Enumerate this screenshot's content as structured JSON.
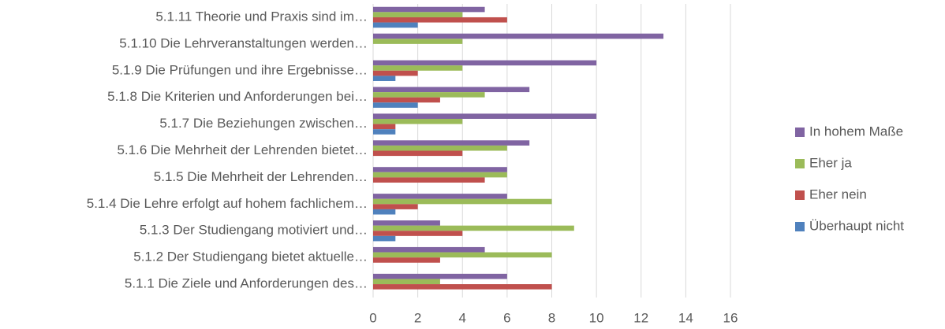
{
  "chart_data": {
    "type": "bar",
    "orientation": "horizontal",
    "categories": [
      "5.1.1 Die Ziele und Anforderungen des…",
      "5.1.2 Der Studiengang bietet aktuelle…",
      "5.1.3  Der Studiengang motiviert und…",
      "5.1.4 Die Lehre erfolgt auf hohem fachlichem…",
      "5.1.5 Die Mehrheit der Lehrenden…",
      "5.1.6 Die Mehrheit der Lehrenden bietet…",
      "5.1.7 Die Beziehungen zwischen…",
      "5.1.8 Die Kriterien und Anforderungen bei…",
      "5.1.9 Die Prüfungen und ihre Ergebnisse…",
      "5.1.10 Die Lehrveranstaltungen werden…",
      "5.1.11 Theorie und Praxis sind im…"
    ],
    "series": [
      {
        "name": "In hohem Maße",
        "color": "#8064a2",
        "values": [
          6,
          5,
          3,
          6,
          6,
          7,
          10,
          7,
          10,
          13,
          5
        ]
      },
      {
        "name": "Eher ja",
        "color": "#9bbb59",
        "values": [
          3,
          8,
          9,
          8,
          6,
          6,
          4,
          5,
          4,
          4,
          4
        ]
      },
      {
        "name": "Eher nein",
        "color": "#c0504d",
        "values": [
          8,
          3,
          4,
          2,
          5,
          4,
          1,
          3,
          2,
          0,
          6
        ]
      },
      {
        "name": "Überhaupt nicht",
        "color": "#4f81bd",
        "values": [
          0,
          0,
          1,
          1,
          0,
          0,
          1,
          2,
          1,
          0,
          2
        ]
      }
    ],
    "xlim": [
      0,
      16
    ],
    "xticks": [
      0,
      2,
      4,
      6,
      8,
      10,
      12,
      14,
      16
    ],
    "grid": true,
    "legend": "right"
  }
}
